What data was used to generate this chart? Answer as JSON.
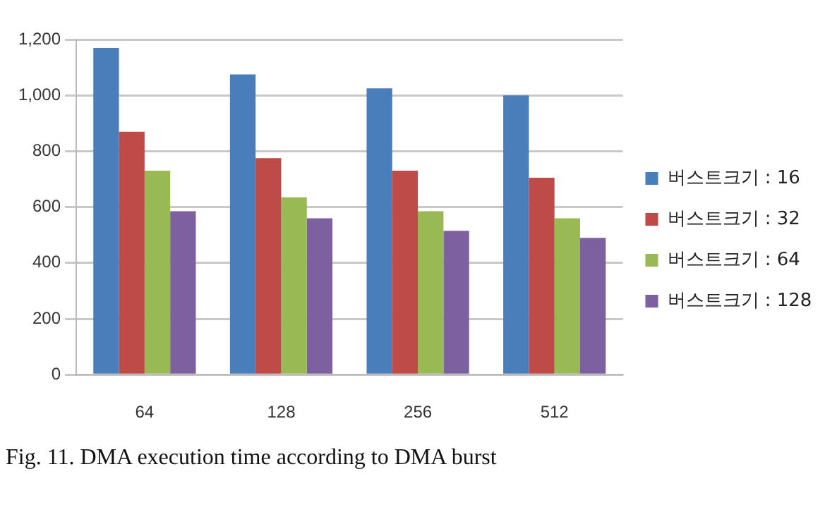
{
  "chart_data": {
    "type": "bar",
    "categories": [
      "64",
      "128",
      "256",
      "512"
    ],
    "series": [
      {
        "name": "버스트크기 : 16",
        "color": "#4a7ebb",
        "values": [
          1170,
          1075,
          1025,
          1000
        ]
      },
      {
        "name": "버스트크기 : 32",
        "color": "#be4b48",
        "values": [
          870,
          775,
          730,
          705
        ]
      },
      {
        "name": "버스트크기 : 64",
        "color": "#98b954",
        "values": [
          730,
          635,
          585,
          560
        ]
      },
      {
        "name": "버스트크기 : 128",
        "color": "#7d60a0",
        "values": [
          585,
          560,
          515,
          490
        ]
      }
    ],
    "ylim": [
      0,
      1200
    ],
    "yticks": [
      {
        "value": 0,
        "label": "0"
      },
      {
        "value": 200,
        "label": "200"
      },
      {
        "value": 400,
        "label": "400"
      },
      {
        "value": 600,
        "label": "600"
      },
      {
        "value": 800,
        "label": "800"
      },
      {
        "value": 1000,
        "label": "1,000"
      },
      {
        "value": 1200,
        "label": "1,200"
      }
    ],
    "grid": "y",
    "legend": "right",
    "annotations": [
      "Fig. 11. DMA execution time according to DMA burst"
    ]
  }
}
